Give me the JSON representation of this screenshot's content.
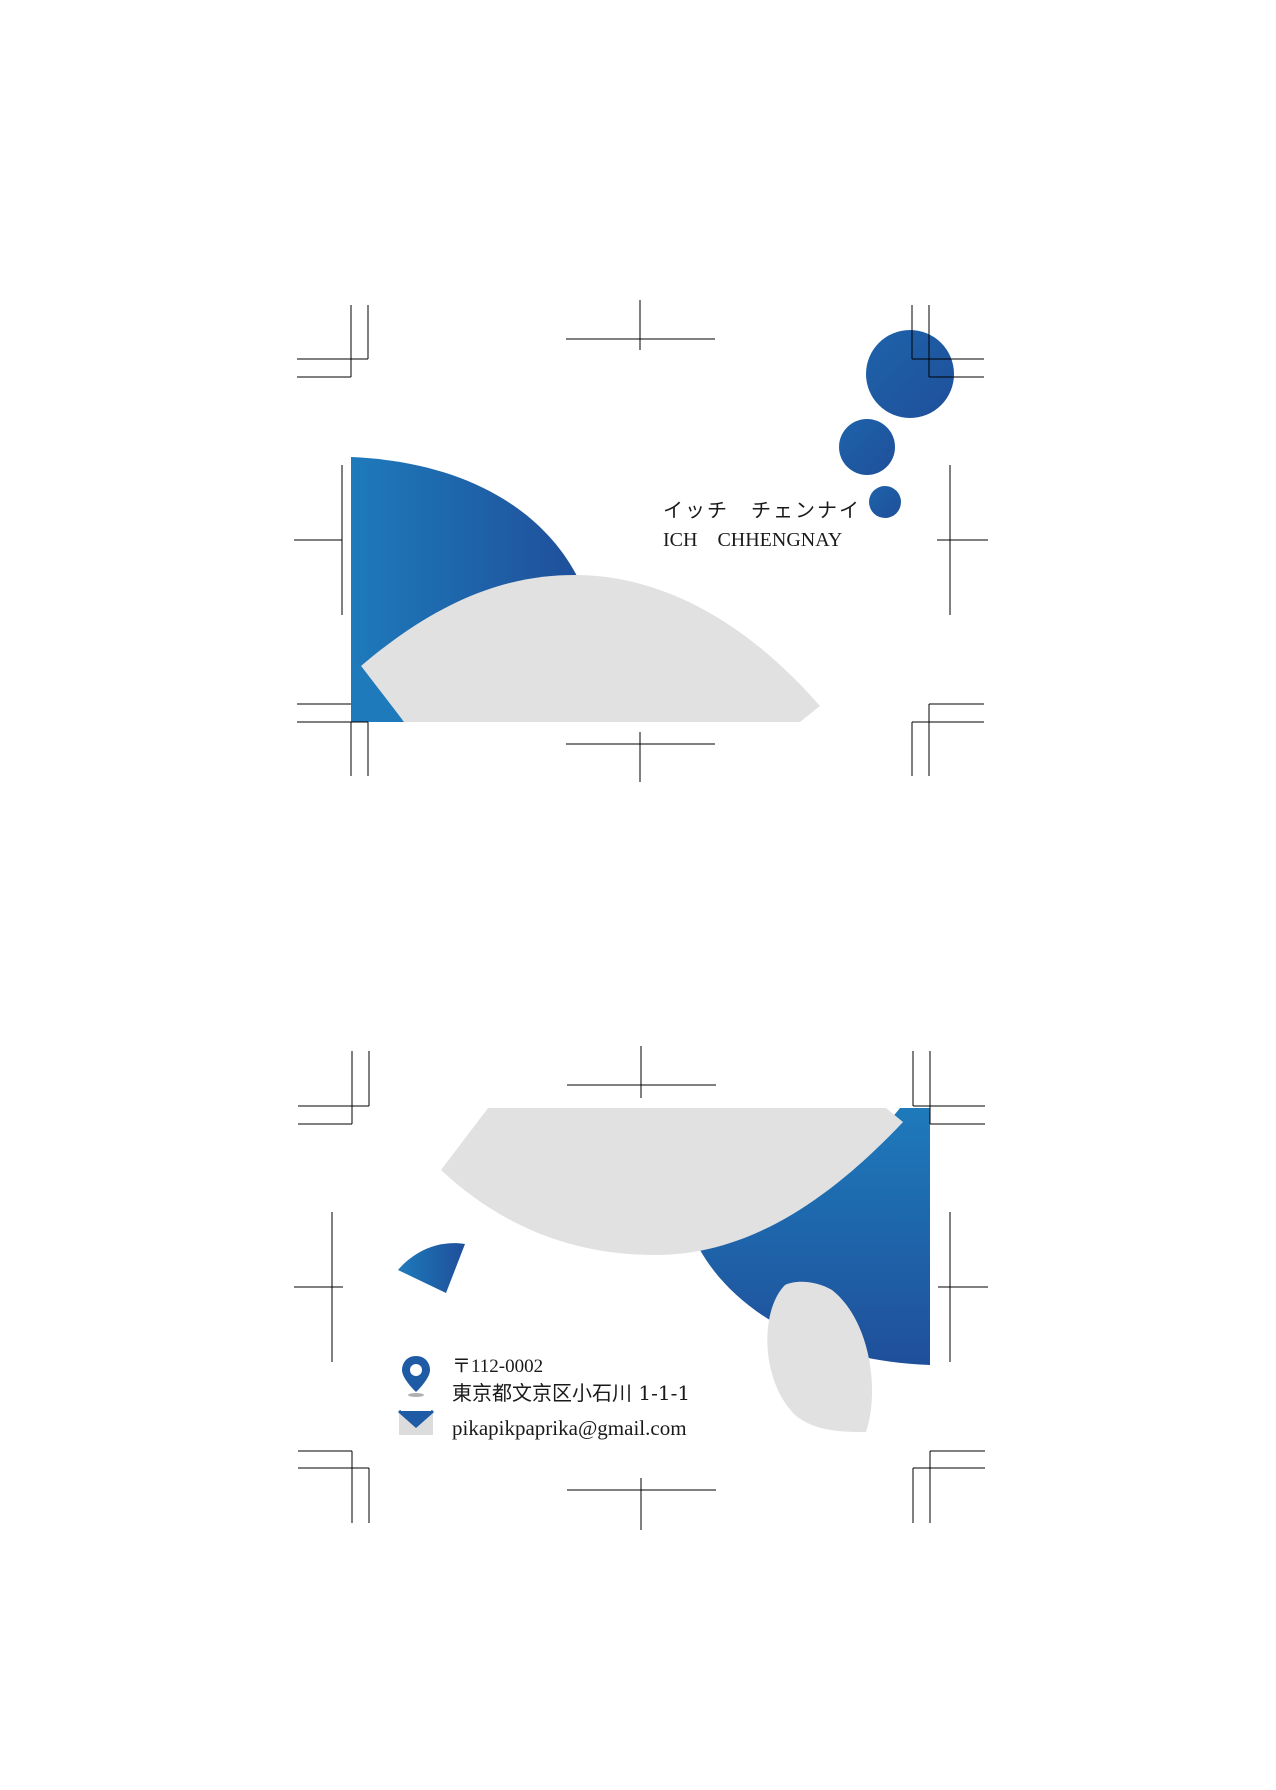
{
  "front": {
    "name_kana": "イッチ　チェンナイ",
    "name_roman": "ICH　CHHENGNAY"
  },
  "back": {
    "postal_code": "〒112-0002",
    "address": "東京都文京区小石川 1-1-1",
    "email": "pikapikpaprika@gmail.com",
    "location_icon": "map-pin-icon",
    "mail_icon": "envelope-icon"
  },
  "colors": {
    "blue_light": "#1e7abb",
    "blue_dark": "#1f4f9a",
    "gray": "#e1e1e1",
    "crop_marks": "#000000"
  }
}
